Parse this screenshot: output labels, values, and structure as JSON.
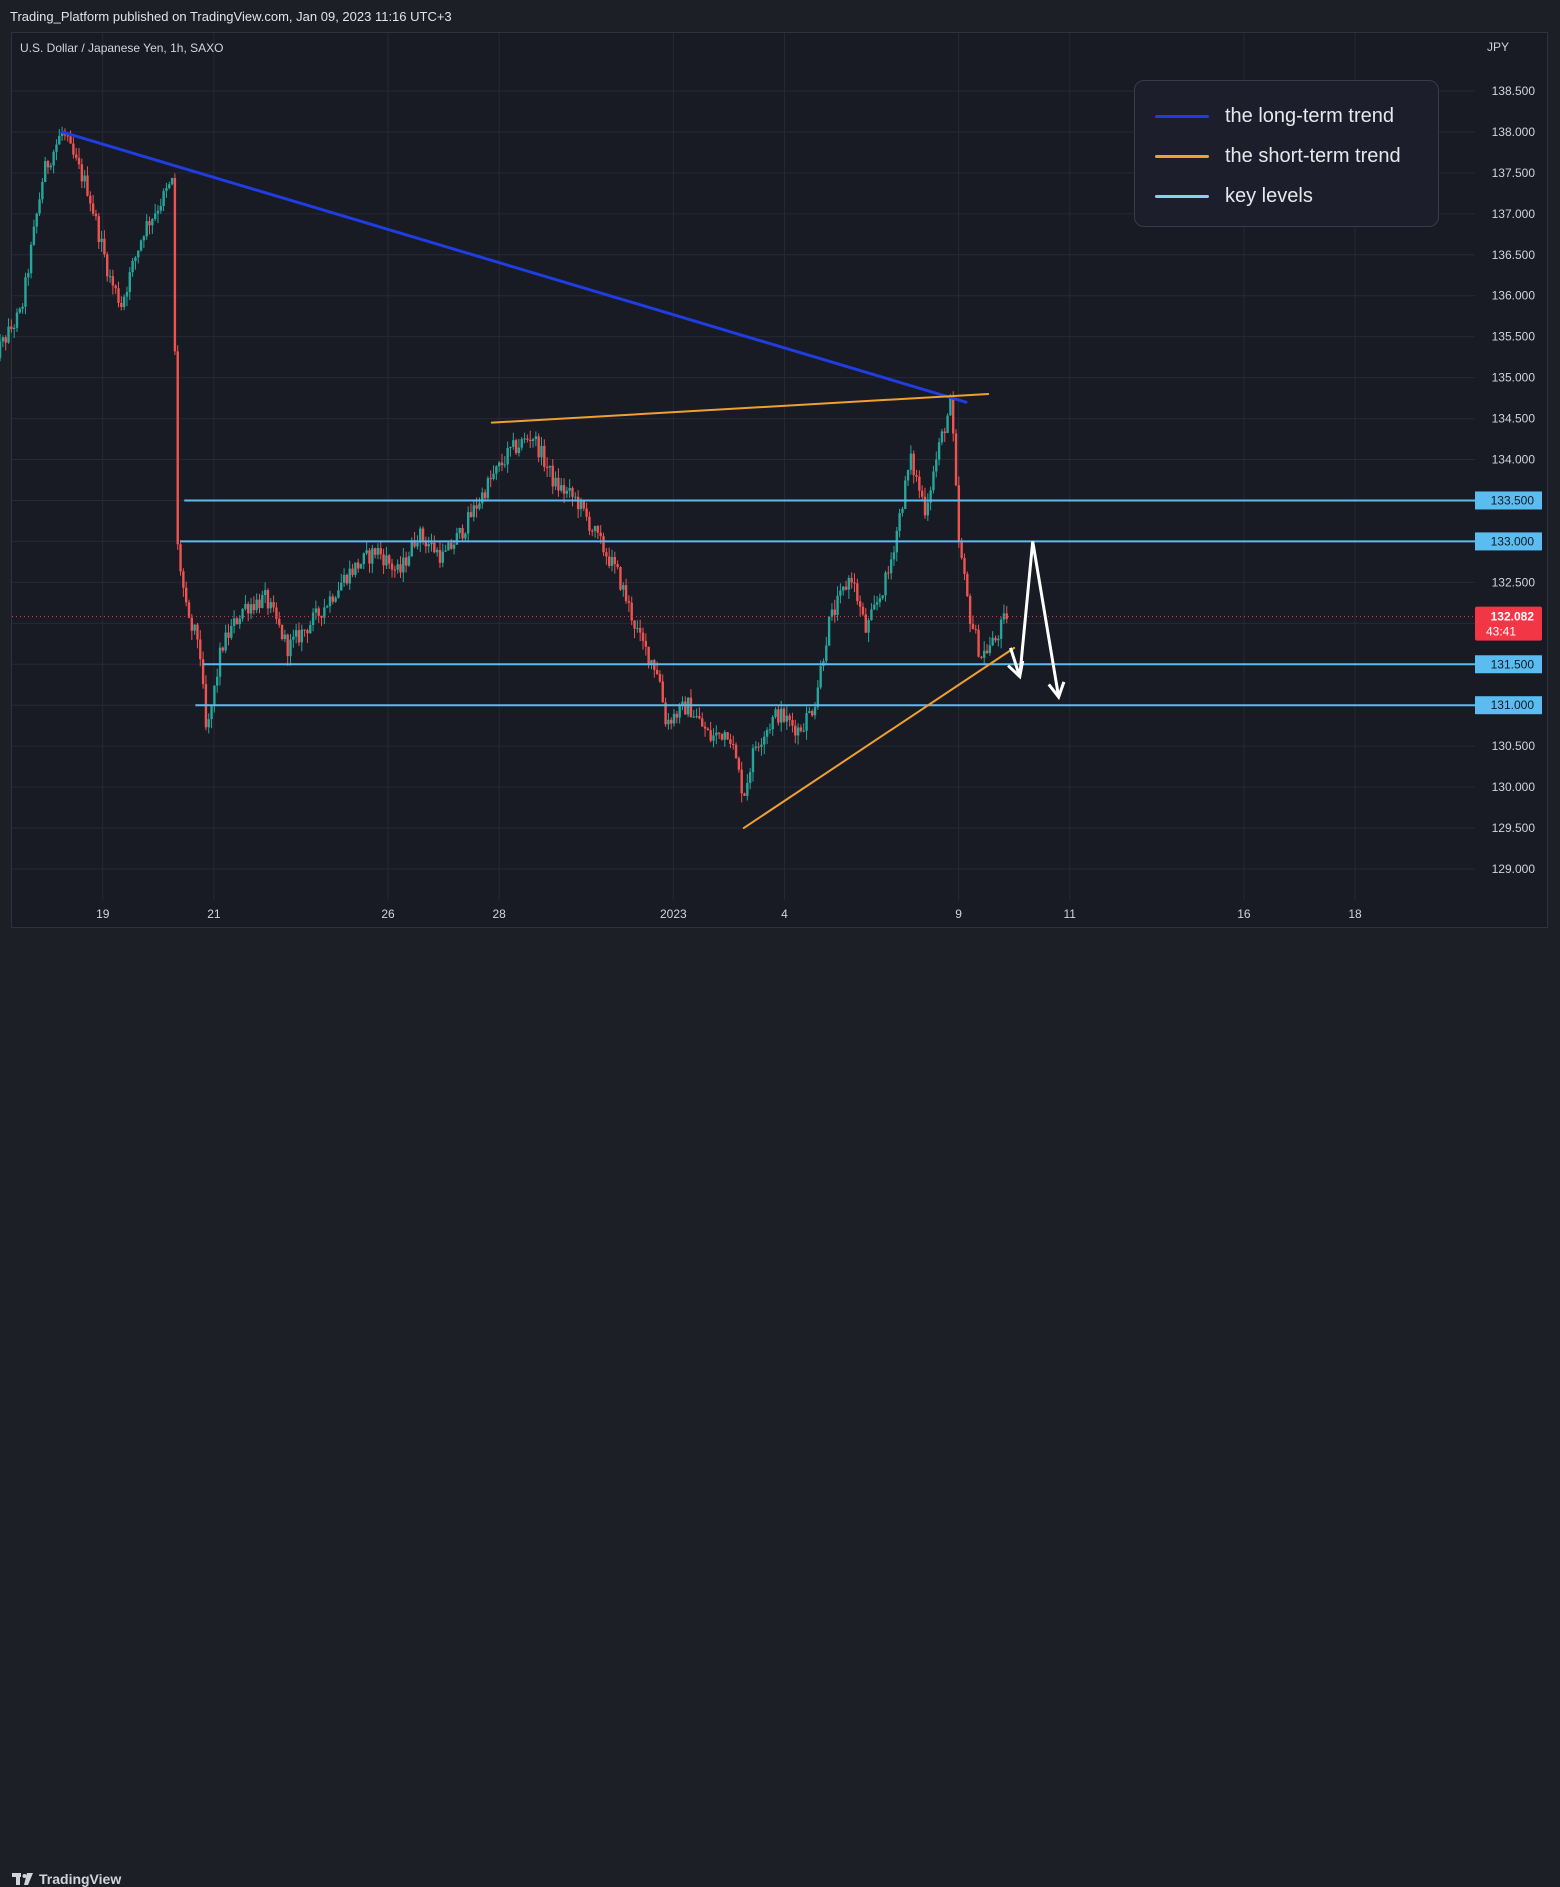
{
  "header": {
    "published_text": "Trading_Platform published on TradingView.com, Jan 09, 2023 11:16 UTC+3"
  },
  "chart_data": {
    "type": "candlestick",
    "symbol_label": "U.S. Dollar / Japanese Yen, 1h, SAXO",
    "currency": "JPY",
    "y_ticks": [
      "138.500",
      "138.000",
      "137.500",
      "137.000",
      "136.500",
      "136.000",
      "135.500",
      "135.000",
      "134.500",
      "134.000",
      "133.500",
      "133.000",
      "132.500",
      "132.000",
      "131.500",
      "131.000",
      "130.500",
      "130.000",
      "129.500",
      "129.000"
    ],
    "ylim": [
      128.75,
      139.0
    ],
    "x_ticks": [
      {
        "label": "19",
        "t": 3
      },
      {
        "label": "21",
        "t": 6
      },
      {
        "label": "26",
        "t": 10.7
      },
      {
        "label": "28",
        "t": 13.7
      },
      {
        "label": "2023",
        "t": 18.4
      },
      {
        "label": "4",
        "t": 21.4
      },
      {
        "label": "9",
        "t": 26.1
      },
      {
        "label": "11",
        "t": 29.1
      },
      {
        "label": "16",
        "t": 33.8
      },
      {
        "label": "18",
        "t": 36.8
      }
    ],
    "price_path": [
      [
        0,
        135.2
      ],
      [
        0.8,
        135.8
      ],
      [
        1.4,
        137.5
      ],
      [
        1.9,
        138.0
      ],
      [
        2.6,
        137.3
      ],
      [
        3.2,
        136.2
      ],
      [
        3.5,
        135.9
      ],
      [
        4.1,
        136.8
      ],
      [
        4.9,
        137.4
      ],
      [
        5.0,
        133.0
      ],
      [
        5.3,
        132.0
      ],
      [
        5.6,
        131.8
      ],
      [
        5.8,
        130.6
      ],
      [
        6.2,
        131.7
      ],
      [
        6.8,
        132.2
      ],
      [
        7.4,
        132.3
      ],
      [
        8.0,
        131.7
      ],
      [
        8.8,
        132.1
      ],
      [
        9.6,
        132.6
      ],
      [
        10.4,
        132.9
      ],
      [
        11.0,
        132.6
      ],
      [
        11.5,
        133.1
      ],
      [
        12.2,
        132.8
      ],
      [
        12.8,
        133.2
      ],
      [
        13.4,
        133.7
      ],
      [
        14.0,
        134.1
      ],
      [
        14.6,
        134.3
      ],
      [
        15.2,
        133.7
      ],
      [
        15.8,
        133.5
      ],
      [
        16.4,
        133.0
      ],
      [
        16.9,
        132.6
      ],
      [
        17.5,
        131.8
      ],
      [
        18.0,
        131.4
      ],
      [
        18.2,
        130.8
      ],
      [
        18.8,
        131.0
      ],
      [
        19.4,
        130.6
      ],
      [
        19.9,
        130.7
      ],
      [
        20.3,
        129.9
      ],
      [
        20.6,
        130.5
      ],
      [
        21.2,
        130.9
      ],
      [
        21.8,
        130.7
      ],
      [
        22.2,
        131.0
      ],
      [
        22.6,
        132.0
      ],
      [
        23.2,
        132.6
      ],
      [
        23.6,
        131.9
      ],
      [
        24.2,
        132.6
      ],
      [
        24.8,
        134.0
      ],
      [
        25.2,
        133.4
      ],
      [
        25.6,
        134.2
      ],
      [
        25.9,
        134.7
      ],
      [
        26.1,
        133.0
      ],
      [
        26.4,
        132.1
      ],
      [
        26.7,
        131.6
      ],
      [
        27.1,
        131.8
      ],
      [
        27.4,
        132.1
      ]
    ],
    "current_price": "132.082",
    "countdown": "43:41",
    "trendlines": [
      {
        "name": "the long-term trend",
        "color": "#1f3de0",
        "x": [
          1.9,
          26.3
        ],
        "y": [
          138.0,
          134.7
        ],
        "width": 3
      },
      {
        "name": "the short-term trend",
        "color": "#f0a030",
        "x": [
          13.5,
          26.9
        ],
        "y": [
          134.45,
          134.8
        ],
        "width": 2
      },
      {
        "name": "the short-term trend",
        "color": "#f0a030",
        "x": [
          20.3,
          27.6
        ],
        "y": [
          129.5,
          131.7
        ],
        "width": 2
      }
    ],
    "key_levels": [
      {
        "value": 133.5,
        "label": "133.500",
        "x_start": 5.2
      },
      {
        "value": 133.0,
        "label": "133.000",
        "x_start": 5.1
      },
      {
        "value": 131.5,
        "label": "131.500",
        "x_start": 5.7
      },
      {
        "value": 131.0,
        "label": "131.000",
        "x_start": 5.5
      }
    ],
    "forecast_path": {
      "x": [
        27.5,
        27.75,
        28.1,
        28.8
      ],
      "y": [
        131.7,
        131.35,
        133.0,
        131.1
      ]
    },
    "legend": {
      "placement": "top-right",
      "items": [
        {
          "label": "the long-term trend",
          "color": "#1f3de0"
        },
        {
          "label": "the short-term trend",
          "color": "#f0a030"
        },
        {
          "label": "key levels",
          "color": "#7fd6f0"
        }
      ]
    },
    "colors": {
      "up": "#26a69a",
      "down": "#ef5350",
      "level": "#5bbcef",
      "price_tag": "#f23645",
      "forecast": "#ffffff"
    }
  },
  "footer": {
    "brand": "TradingView"
  }
}
